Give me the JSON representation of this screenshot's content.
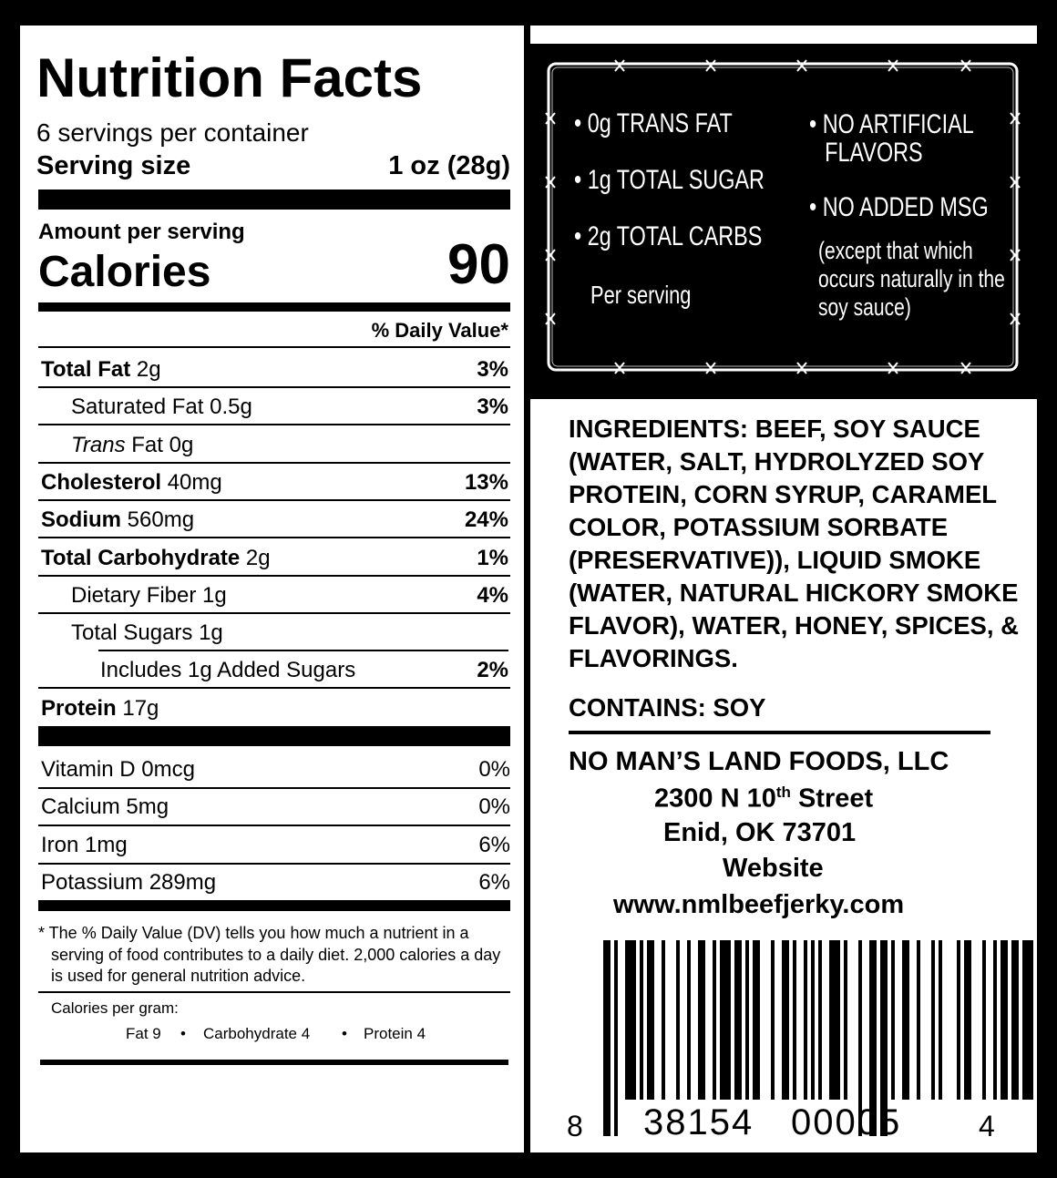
{
  "nutrition_facts": {
    "title": "Nutrition Facts",
    "servings": "6 servings per container",
    "serving_size_label": "Serving size",
    "serving_size": "1 oz (28g)",
    "amount_per_serving": "Amount per serving",
    "calories_label": "Calories",
    "calories": "90",
    "daily_value_header": "% Daily Value*",
    "rows": [
      {
        "name": "Total Fat",
        "amount": "2g",
        "dv": "3%"
      },
      {
        "name": "Saturated Fat",
        "amount": "0.5g",
        "dv": "3%"
      },
      {
        "name": "Trans",
        "amount": "Fat 0g"
      },
      {
        "name": "Cholesterol",
        "amount": "40mg",
        "dv": "13%"
      },
      {
        "name": "Sodium",
        "amount": "560mg",
        "dv": "24%"
      },
      {
        "name": "Total Carbohydrate",
        "amount": "2g",
        "dv": "1%"
      },
      {
        "name": "Dietary Fiber",
        "amount": "1g",
        "dv": "4%"
      },
      {
        "name": "Total Sugars",
        "amount": "1g"
      },
      {
        "name": "Includes 1g Added Sugars",
        "amount": "",
        "dv": "2%"
      },
      {
        "name": "Protein",
        "amount": "17g"
      }
    ],
    "vitamins": [
      {
        "label": "Vitamin D 0mcg",
        "dv": "0%"
      },
      {
        "label": "Calcium 5mg",
        "dv": "0%"
      },
      {
        "label": "Iron 1mg",
        "dv": "6%"
      },
      {
        "label": "Potassium 289mg",
        "dv": "6%"
      }
    ],
    "footnote": "* The % Daily Value (DV) tells you how much a nutrient in a serving of food contributes to a daily diet. 2,000 calories a day is used for general nutrition advice.",
    "calories_per_gram_label": "Calories per gram:",
    "calories_per_gram": [
      "Fat 9",
      "Carbohydrate 4",
      "Protein 4"
    ]
  },
  "claims": {
    "left": [
      "0g TRANS FAT",
      "1g TOTAL SUGAR",
      "2g TOTAL CARBS"
    ],
    "per_serving": "Per serving",
    "right": [
      "NO ARTIFICIAL FLAVORS",
      "NO ADDED MSG"
    ],
    "msg_note": "(except that which occurs naturally in the soy sauce)"
  },
  "ingredients": "INGREDIENTS: BEEF, SOY SAUCE (WATER, SALT, HYDROLYZED SOY PROTEIN, CORN SYRUP, CARAMEL COLOR, POTASSIUM SORBATE (PRESERVATIVE)), LIQUID SMOKE (WATER, NATURAL HICKORY SMOKE FLAVOR), WATER, HONEY, SPICES, & FLAVORINGS.",
  "contains": "CONTAINS: SOY",
  "company": {
    "name": "NO MAN’S LAND FOODS, LLC",
    "street_number": "2300 N 10",
    "street_suffix": "th",
    "street_name": "Street",
    "city": "Enid, OK 73701",
    "website_label": "Website",
    "website": "www.nmlbeefjerky.com"
  },
  "barcode": {
    "first": "8",
    "group1": "38154",
    "group2": "00005",
    "last": "4"
  }
}
